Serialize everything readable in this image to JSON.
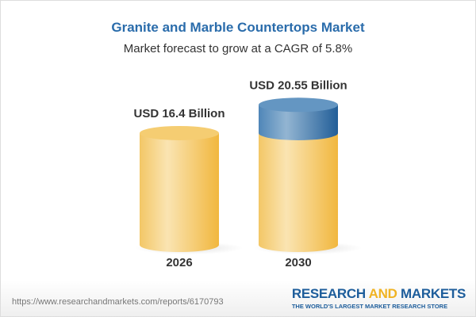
{
  "title": "Granite and Marble Countertops Market",
  "subtitle": "Market forecast to grow at a CAGR of 5.8%",
  "chart_data": {
    "type": "bar",
    "style": "3d-cylinder",
    "categories": [
      "2026",
      "2030"
    ],
    "values": [
      16.4,
      20.55
    ],
    "data_labels": [
      "USD 16.4 Billion",
      "USD 20.55 Billion"
    ],
    "unit": "USD Billion",
    "colors": {
      "base": "#f4c55a",
      "growth": "#5b8fbd"
    }
  },
  "footer": {
    "url": "https://www.researchandmarkets.com/reports/6170793",
    "logo": {
      "part1": "RESEARCH",
      "part2": "AND",
      "part3": "MARKETS",
      "tagline": "THE WORLD'S LARGEST MARKET RESEARCH STORE"
    }
  }
}
